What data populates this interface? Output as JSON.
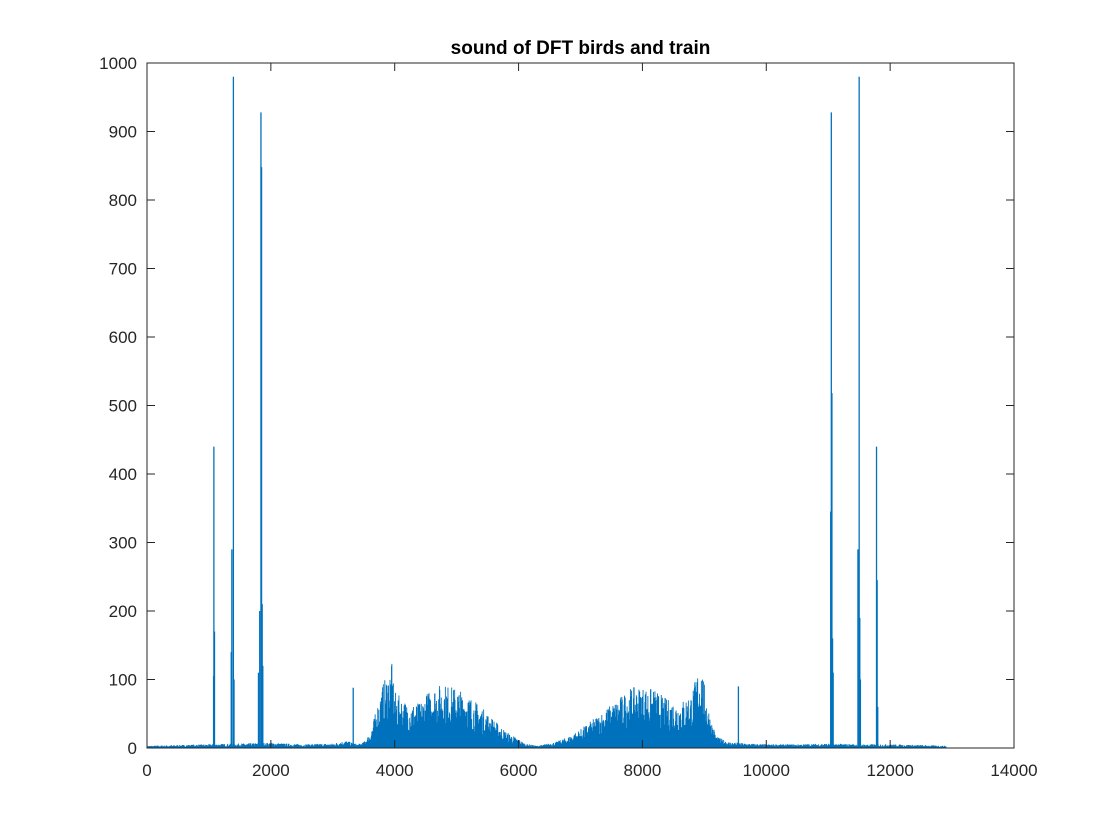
{
  "chart_data": {
    "type": "area",
    "title": "sound of DFT birds and train",
    "xlabel": "",
    "ylabel": "",
    "xlim": [
      0,
      14000
    ],
    "ylim": [
      0,
      1000
    ],
    "xticks": [
      "0",
      "2000",
      "4000",
      "6000",
      "8000",
      "10000",
      "12000",
      "14000"
    ],
    "yticks": [
      "0",
      "100",
      "200",
      "300",
      "400",
      "500",
      "600",
      "700",
      "800",
      "900",
      "1000"
    ],
    "grid": false,
    "series_color": "#0072BD",
    "spikes": [
      {
        "x": 1080,
        "y": 440
      },
      {
        "x": 1090,
        "y": 170
      },
      {
        "x": 1075,
        "y": 105
      },
      {
        "x": 1370,
        "y": 290
      },
      {
        "x": 1360,
        "y": 140
      },
      {
        "x": 1395,
        "y": 980
      },
      {
        "x": 1405,
        "y": 100
      },
      {
        "x": 1800,
        "y": 110
      },
      {
        "x": 1820,
        "y": 200
      },
      {
        "x": 1840,
        "y": 928
      },
      {
        "x": 1850,
        "y": 848
      },
      {
        "x": 1860,
        "y": 210
      },
      {
        "x": 1870,
        "y": 120
      },
      {
        "x": 3330,
        "y": 88
      },
      {
        "x": 9550,
        "y": 90
      },
      {
        "x": 11040,
        "y": 345
      },
      {
        "x": 11050,
        "y": 928
      },
      {
        "x": 11060,
        "y": 518
      },
      {
        "x": 11070,
        "y": 160
      },
      {
        "x": 11080,
        "y": 110
      },
      {
        "x": 11480,
        "y": 290
      },
      {
        "x": 11500,
        "y": 980
      },
      {
        "x": 11510,
        "y": 190
      },
      {
        "x": 11520,
        "y": 100
      },
      {
        "x": 11780,
        "y": 440
      },
      {
        "x": 11790,
        "y": 245
      },
      {
        "x": 11800,
        "y": 60
      }
    ],
    "envelope": [
      [
        0,
        3
      ],
      [
        500,
        4
      ],
      [
        1000,
        5
      ],
      [
        1500,
        6
      ],
      [
        2000,
        7
      ],
      [
        2500,
        5
      ],
      [
        3000,
        6
      ],
      [
        3200,
        10
      ],
      [
        3400,
        5
      ],
      [
        3500,
        8
      ],
      [
        3600,
        20
      ],
      [
        3700,
        50
      ],
      [
        3800,
        85
      ],
      [
        3900,
        100
      ],
      [
        3950,
        115
      ],
      [
        4000,
        75
      ],
      [
        4200,
        60
      ],
      [
        4400,
        60
      ],
      [
        4600,
        82
      ],
      [
        4800,
        85
      ],
      [
        5000,
        80
      ],
      [
        5200,
        70
      ],
      [
        5400,
        55
      ],
      [
        5600,
        38
      ],
      [
        5800,
        22
      ],
      [
        6000,
        12
      ],
      [
        6100,
        6
      ],
      [
        6300,
        3
      ],
      [
        6600,
        8
      ],
      [
        6800,
        15
      ],
      [
        7000,
        25
      ],
      [
        7200,
        38
      ],
      [
        7400,
        52
      ],
      [
        7600,
        65
      ],
      [
        7800,
        80
      ],
      [
        8000,
        82
      ],
      [
        8200,
        78
      ],
      [
        8400,
        65
      ],
      [
        8600,
        60
      ],
      [
        8800,
        75
      ],
      [
        8900,
        105
      ],
      [
        8950,
        110
      ],
      [
        9000,
        85
      ],
      [
        9100,
        40
      ],
      [
        9200,
        15
      ],
      [
        9400,
        8
      ],
      [
        9700,
        6
      ],
      [
        10000,
        5
      ],
      [
        10500,
        5
      ],
      [
        11000,
        6
      ],
      [
        11500,
        5
      ],
      [
        12000,
        5
      ],
      [
        12500,
        4
      ],
      [
        12900,
        3
      ]
    ]
  }
}
